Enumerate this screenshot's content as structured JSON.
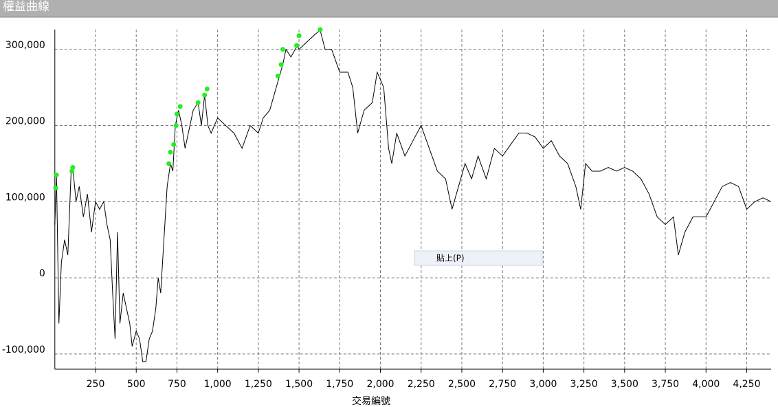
{
  "chart_data": {
    "type": "line",
    "title": "權益曲線",
    "x_label": "交易編號",
    "xlim": [
      0,
      4400
    ],
    "ylim": [
      -120000,
      326000
    ],
    "grid": true,
    "grid_style": "dashed",
    "xticks": [
      250,
      500,
      750,
      {
        "value": 1000,
        "label": "1,000"
      },
      {
        "value": 1250,
        "label": "1,250"
      },
      {
        "value": 1500,
        "label": "1,500"
      },
      {
        "value": 1750,
        "label": "1,750"
      },
      {
        "value": 2000,
        "label": "2,000"
      },
      {
        "value": 2250,
        "label": "2,250"
      },
      {
        "value": 2500,
        "label": "2,500"
      },
      {
        "value": 2750,
        "label": "2,750"
      },
      {
        "value": 3000,
        "label": "3,000"
      },
      {
        "value": 3250,
        "label": "3,250"
      },
      {
        "value": 3500,
        "label": "3,500"
      },
      {
        "value": 3750,
        "label": "3,750"
      },
      {
        "value": 4000,
        "label": "4,000"
      },
      {
        "value": 4250,
        "label": "4,250"
      }
    ],
    "yticks": [
      {
        "value": -100000,
        "label": "-100,000"
      },
      0,
      {
        "value": 100000,
        "label": "100,000"
      },
      {
        "value": 200000,
        "label": "200,000"
      },
      {
        "value": 300000,
        "label": "300,000"
      }
    ],
    "series": [
      {
        "color": "#000000",
        "marker": "none",
        "x": [
          0,
          10,
          25,
          40,
          60,
          80,
          100,
          110,
          130,
          150,
          175,
          200,
          225,
          250,
          275,
          300,
          320,
          340,
          355,
          370,
          385,
          400,
          420,
          440,
          460,
          475,
          500,
          520,
          540,
          560,
          580,
          600,
          620,
          635,
          650,
          670,
          690,
          710,
          725,
          740,
          760,
          780,
          800,
          820,
          850,
          880,
          900,
          920,
          940,
          960,
          1000,
          1050,
          1100,
          1150,
          1200,
          1250,
          1280,
          1320,
          1360,
          1380,
          1400,
          1420,
          1450,
          1490,
          1500,
          1550,
          1600,
          1630,
          1660,
          1700,
          1750,
          1800,
          1830,
          1860,
          1900,
          1950,
          1980,
          2020,
          2050,
          2070,
          2100,
          2150,
          2200,
          2250,
          2300,
          2350,
          2400,
          2440,
          2480,
          2520,
          2560,
          2600,
          2650,
          2700,
          2750,
          2800,
          2850,
          2900,
          2950,
          3000,
          3050,
          3100,
          3150,
          3200,
          3230,
          3260,
          3300,
          3350,
          3400,
          3450,
          3500,
          3550,
          3600,
          3650,
          3700,
          3750,
          3800,
          3830,
          3870,
          3920,
          3950,
          4000,
          4050,
          4100,
          4150,
          4200,
          4250,
          4300,
          4350,
          4400
        ],
        "values": [
          70000,
          135000,
          -60000,
          20000,
          50000,
          30000,
          140000,
          145000,
          100000,
          120000,
          80000,
          110000,
          60000,
          100000,
          90000,
          100000,
          70000,
          50000,
          -20000,
          -80000,
          60000,
          -60000,
          -20000,
          -40000,
          -60000,
          -90000,
          -70000,
          -80000,
          -110000,
          -110000,
          -80000,
          -70000,
          -40000,
          0,
          -20000,
          50000,
          120000,
          150000,
          140000,
          200000,
          220000,
          200000,
          170000,
          190000,
          220000,
          230000,
          200000,
          240000,
          200000,
          190000,
          210000,
          200000,
          190000,
          170000,
          200000,
          190000,
          210000,
          220000,
          250000,
          265000,
          280000,
          300000,
          290000,
          305000,
          300000,
          310000,
          320000,
          325000,
          300000,
          300000,
          270000,
          270000,
          250000,
          190000,
          220000,
          230000,
          270000,
          250000,
          170000,
          150000,
          190000,
          160000,
          180000,
          200000,
          170000,
          140000,
          130000,
          90000,
          120000,
          150000,
          130000,
          160000,
          130000,
          170000,
          160000,
          175000,
          190000,
          190000,
          185000,
          170000,
          180000,
          160000,
          150000,
          120000,
          90000,
          150000,
          140000,
          140000,
          145000,
          140000,
          145000,
          140000,
          130000,
          110000,
          80000,
          70000,
          80000,
          30000,
          60000,
          80000,
          80000,
          80000,
          100000,
          120000,
          125000,
          120000,
          90000,
          100000,
          105000,
          100000
        ]
      },
      {
        "color": "#22ee22",
        "marker": "circle",
        "x": [
          5,
          10,
          105,
          110,
          700,
          710,
          730,
          745,
          750,
          770,
          880,
          920,
          935,
          1370,
          1390,
          1400,
          1485,
          1500,
          1630
        ],
        "values": [
          118000,
          135000,
          140000,
          145000,
          150000,
          165000,
          175000,
          200000,
          215000,
          225000,
          230000,
          240000,
          248000,
          265000,
          280000,
          300000,
          305000,
          318000,
          326000
        ]
      }
    ]
  },
  "context_menu": {
    "items": [
      "貼上(P)"
    ]
  }
}
